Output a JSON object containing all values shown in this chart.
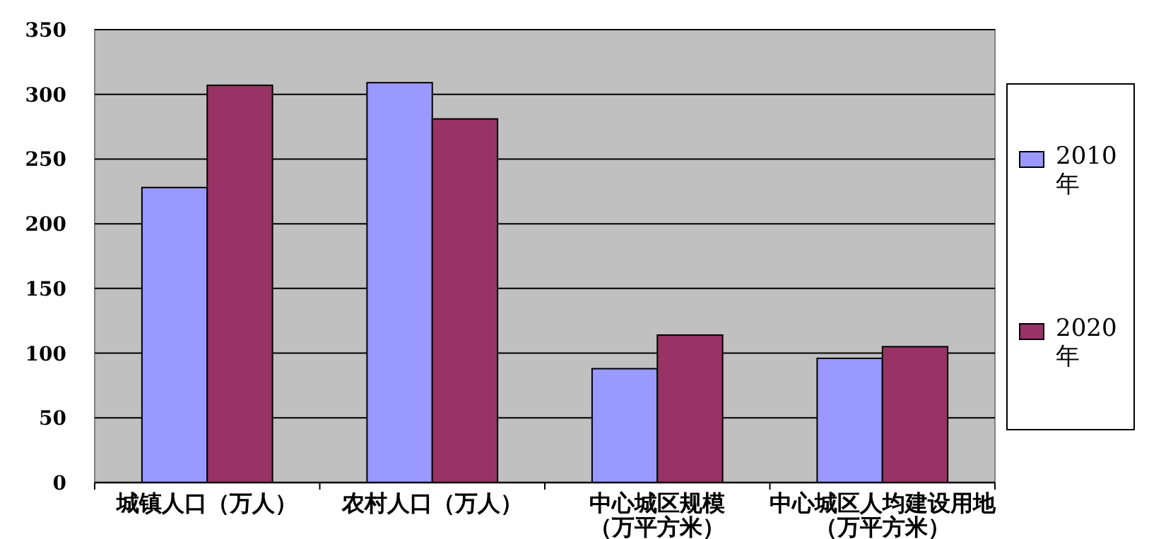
{
  "chart_data": {
    "type": "bar",
    "categories": [
      "城镇人口（万人）",
      "农村人口（万人）",
      "中心城区规模（万平方米）",
      "中心城区人均建设用地（万平方米）"
    ],
    "series": [
      {
        "name": "2010年",
        "color": "#9999ff",
        "values": [
          228,
          309,
          88,
          96
        ]
      },
      {
        "name": "2020年",
        "color": "#993366",
        "values": [
          307,
          281,
          114,
          105
        ]
      }
    ],
    "ylim": [
      0,
      350
    ],
    "yticks": [
      0,
      50,
      100,
      150,
      200,
      250,
      300,
      350
    ],
    "grid": "y",
    "legend": "right"
  }
}
